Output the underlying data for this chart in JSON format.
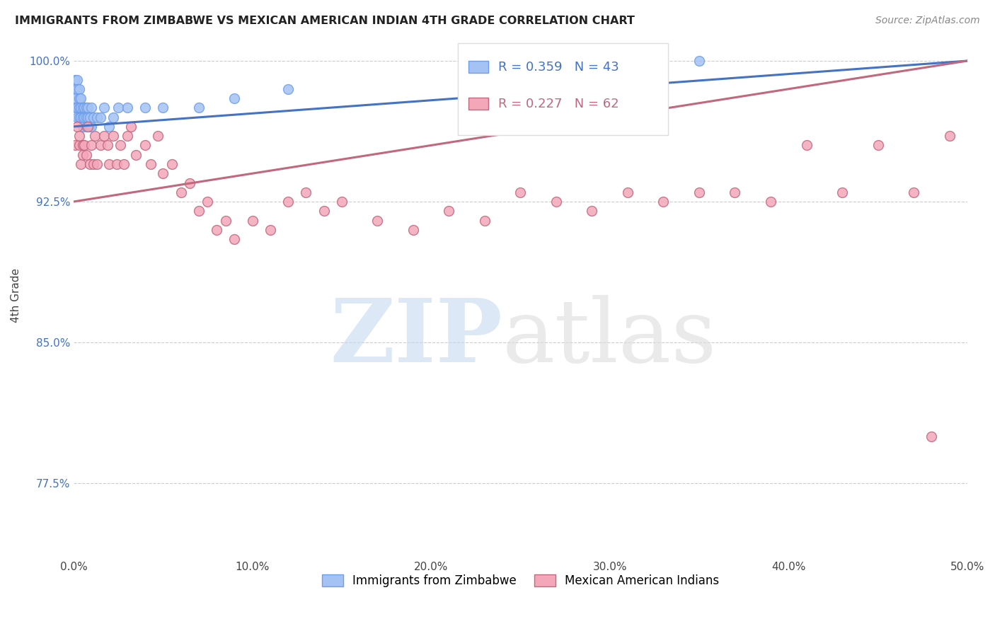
{
  "title": "IMMIGRANTS FROM ZIMBABWE VS MEXICAN AMERICAN INDIAN 4TH GRADE CORRELATION CHART",
  "source": "Source: ZipAtlas.com",
  "ylabel": "4th Grade",
  "legend_label1": "Immigrants from Zimbabwe",
  "legend_label2": "Mexican American Indians",
  "R1": 0.359,
  "N1": 43,
  "R2": 0.227,
  "N2": 62,
  "xmin": 0.0,
  "xmax": 0.5,
  "ymin": 0.735,
  "ymax": 1.015,
  "yticks": [
    0.775,
    0.85,
    0.925,
    1.0
  ],
  "ytick_labels": [
    "77.5%",
    "85.0%",
    "92.5%",
    "100.0%"
  ],
  "xticks": [
    0.0,
    0.1,
    0.2,
    0.3,
    0.4,
    0.5
  ],
  "xtick_labels": [
    "0.0%",
    "10.0%",
    "20.0%",
    "30.0%",
    "40.0%",
    "50.0%"
  ],
  "color_blue": "#a4c2f4",
  "color_pink": "#f4a7b9",
  "edge_blue": "#6d9eeb",
  "edge_pink": "#c2677e",
  "trendline_blue": "#4472c4",
  "trendline_pink": "#c2677e",
  "trend1_x0": 0.0,
  "trend1_y0": 0.965,
  "trend1_x1": 0.5,
  "trend1_y1": 1.0,
  "trend2_x0": 0.0,
  "trend2_y0": 0.925,
  "trend2_x1": 0.5,
  "trend2_y1": 1.0,
  "scatter1_x": [
    0.001,
    0.001,
    0.001,
    0.001,
    0.002,
    0.002,
    0.002,
    0.002,
    0.003,
    0.003,
    0.003,
    0.003,
    0.004,
    0.004,
    0.004,
    0.005,
    0.005,
    0.005,
    0.006,
    0.006,
    0.007,
    0.007,
    0.007,
    0.008,
    0.008,
    0.009,
    0.009,
    0.01,
    0.01,
    0.011,
    0.013,
    0.015,
    0.017,
    0.02,
    0.022,
    0.025,
    0.03,
    0.04,
    0.05,
    0.07,
    0.09,
    0.12,
    0.35
  ],
  "scatter1_y": [
    0.99,
    0.985,
    0.98,
    0.975,
    0.99,
    0.985,
    0.975,
    0.97,
    0.985,
    0.98,
    0.975,
    0.97,
    0.98,
    0.975,
    0.97,
    0.975,
    0.97,
    0.965,
    0.975,
    0.97,
    0.975,
    0.97,
    0.965,
    0.975,
    0.97,
    0.97,
    0.965,
    0.975,
    0.965,
    0.97,
    0.97,
    0.97,
    0.975,
    0.965,
    0.97,
    0.975,
    0.975,
    0.975,
    0.975,
    0.975,
    0.98,
    0.985,
    1.0
  ],
  "scatter2_x": [
    0.001,
    0.002,
    0.003,
    0.003,
    0.004,
    0.005,
    0.005,
    0.006,
    0.007,
    0.008,
    0.009,
    0.01,
    0.011,
    0.012,
    0.013,
    0.015,
    0.017,
    0.019,
    0.02,
    0.022,
    0.024,
    0.026,
    0.028,
    0.03,
    0.032,
    0.035,
    0.04,
    0.043,
    0.047,
    0.05,
    0.055,
    0.06,
    0.065,
    0.07,
    0.075,
    0.08,
    0.085,
    0.09,
    0.1,
    0.11,
    0.12,
    0.13,
    0.14,
    0.15,
    0.17,
    0.19,
    0.21,
    0.23,
    0.25,
    0.27,
    0.29,
    0.31,
    0.33,
    0.35,
    0.37,
    0.39,
    0.41,
    0.43,
    0.45,
    0.47,
    0.48,
    0.49
  ],
  "scatter2_y": [
    0.955,
    0.965,
    0.955,
    0.96,
    0.945,
    0.955,
    0.95,
    0.955,
    0.95,
    0.965,
    0.945,
    0.955,
    0.945,
    0.96,
    0.945,
    0.955,
    0.96,
    0.955,
    0.945,
    0.96,
    0.945,
    0.955,
    0.945,
    0.96,
    0.965,
    0.95,
    0.955,
    0.945,
    0.96,
    0.94,
    0.945,
    0.93,
    0.935,
    0.92,
    0.925,
    0.91,
    0.915,
    0.905,
    0.915,
    0.91,
    0.925,
    0.93,
    0.92,
    0.925,
    0.915,
    0.91,
    0.92,
    0.915,
    0.93,
    0.925,
    0.92,
    0.93,
    0.925,
    0.93,
    0.93,
    0.925,
    0.955,
    0.93,
    0.955,
    0.93,
    0.8,
    0.96
  ]
}
